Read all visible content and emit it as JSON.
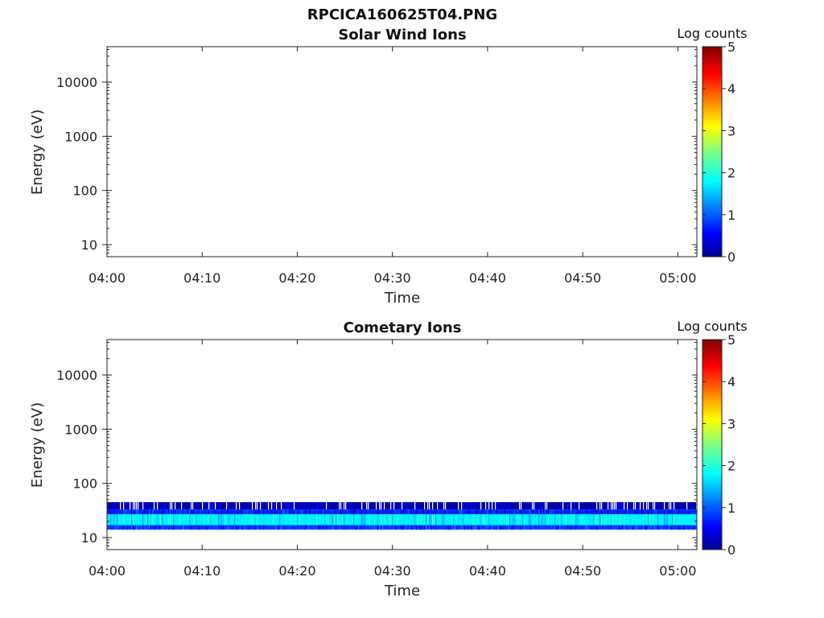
{
  "figure": {
    "title": "RPCICA160625T04.PNG"
  },
  "chart_data": [
    {
      "type": "heatmap",
      "title": "Solar Wind Ions",
      "xlabel": "Time",
      "ylabel": "Energy (eV)",
      "x_range": [
        "04:00",
        "05:02"
      ],
      "x_ticks": [
        "04:00",
        "04:10",
        "04:20",
        "04:30",
        "04:40",
        "04:50",
        "05:00"
      ],
      "y_scale": "log",
      "y_range": [
        6,
        45000
      ],
      "y_ticks": [
        "10",
        "100",
        "1000",
        "10000"
      ],
      "colorbar": {
        "label": "Log counts",
        "range": [
          0,
          5
        ],
        "ticks": [
          "0",
          "1",
          "2",
          "3",
          "4",
          "5"
        ],
        "colormap": "jet"
      },
      "bands": []
    },
    {
      "type": "heatmap",
      "title": "Cometary Ions",
      "xlabel": "Time",
      "ylabel": "Energy (eV)",
      "x_range": [
        "04:00",
        "05:02"
      ],
      "x_ticks": [
        "04:00",
        "04:10",
        "04:20",
        "04:30",
        "04:40",
        "04:50",
        "05:00"
      ],
      "y_scale": "log",
      "y_range": [
        6,
        45000
      ],
      "y_ticks": [
        "10",
        "100",
        "1000",
        "10000"
      ],
      "colorbar": {
        "label": "Log counts",
        "range": [
          0,
          5
        ],
        "ticks": [
          "0",
          "1",
          "2",
          "3",
          "4",
          "5"
        ],
        "colormap": "jet"
      },
      "bands": [
        {
          "energy_min": 14,
          "energy_max": 17,
          "log_counts": 0.9
        },
        {
          "energy_min": 17,
          "energy_max": 27,
          "log_counts": 1.8
        },
        {
          "energy_min": 27,
          "energy_max": 33,
          "log_counts": 0.8
        },
        {
          "energy_min": 33,
          "energy_max": 45,
          "log_counts": 0.2
        }
      ]
    }
  ]
}
